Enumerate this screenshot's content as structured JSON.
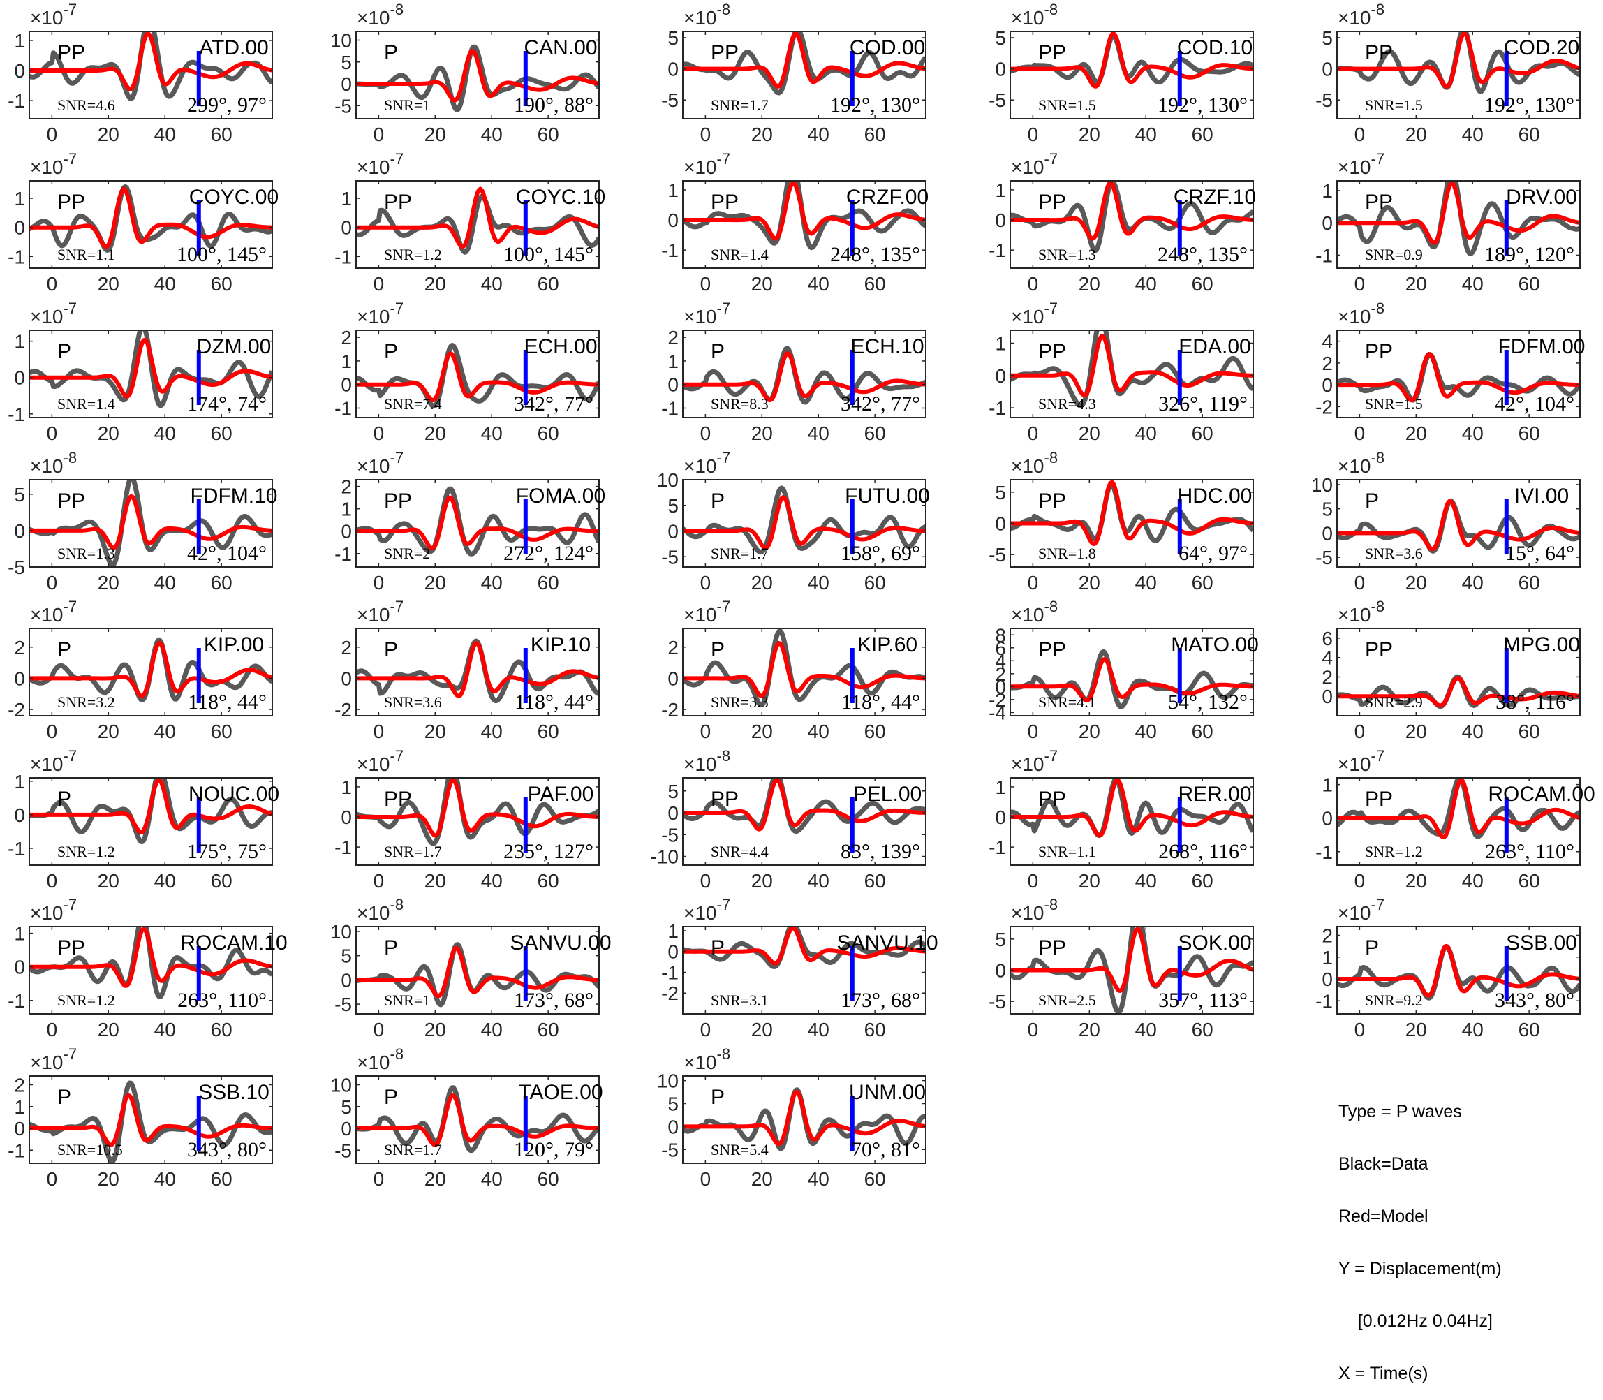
{
  "figure": {
    "colors": {
      "data": "#595959",
      "model": "#ff0000",
      "marker": "#0000ff",
      "axes": "#262626"
    },
    "legend": [
      "Type = P waves",
      "Black=Data",
      "Red=Model",
      "Y = Displacement(m)",
      "    [0.012Hz 0.04Hz]",
      "X = Time(s)"
    ]
  },
  "chart_data": {
    "type": "line",
    "xlabel": "",
    "ylabel": "",
    "xlim": [
      -8,
      78
    ],
    "xticks": [
      0,
      20,
      40,
      60
    ],
    "marker_time": 52,
    "panels": [
      {
        "station": "ATD.00",
        "phase": "PP",
        "snr": "SNR=4.6",
        "angles": "299°, 97°",
        "exp": "-7",
        "yticks": [
          -1,
          0,
          1
        ],
        "ylim": [
          -1.6,
          1.3
        ]
      },
      {
        "station": "CAN.00",
        "phase": "P",
        "snr": "SNR=1",
        "angles": "190°, 88°",
        "exp": "-8",
        "yticks": [
          -5,
          0,
          5,
          10
        ],
        "ylim": [
          -8,
          12
        ]
      },
      {
        "station": "COD.00",
        "phase": "PP",
        "snr": "SNR=1.7",
        "angles": "192°, 130°",
        "exp": "-8",
        "yticks": [
          -5,
          0,
          5
        ],
        "ylim": [
          -8,
          6
        ]
      },
      {
        "station": "COD.10",
        "phase": "PP",
        "snr": "SNR=1.5",
        "angles": "192°, 130°",
        "exp": "-8",
        "yticks": [
          -5,
          0,
          5
        ],
        "ylim": [
          -8,
          6
        ]
      },
      {
        "station": "COD.20",
        "phase": "PP",
        "snr": "SNR=1.5",
        "angles": "192°, 130°",
        "exp": "-8",
        "yticks": [
          -5,
          0,
          5
        ],
        "ylim": [
          -8,
          6
        ]
      },
      {
        "station": "COYC.00",
        "phase": "PP",
        "snr": "SNR=1.1",
        "angles": "100°, 145°",
        "exp": "-7",
        "yticks": [
          -1,
          0,
          1
        ],
        "ylim": [
          -1.4,
          1.6
        ]
      },
      {
        "station": "COYC.10",
        "phase": "PP",
        "snr": "SNR=1.2",
        "angles": "100°, 145°",
        "exp": "-7",
        "yticks": [
          -1,
          0,
          1
        ],
        "ylim": [
          -1.4,
          1.6
        ]
      },
      {
        "station": "CRZF.00",
        "phase": "PP",
        "snr": "SNR=1.4",
        "angles": "248°, 135°",
        "exp": "-7",
        "yticks": [
          -1,
          0,
          1
        ],
        "ylim": [
          -1.6,
          1.3
        ]
      },
      {
        "station": "CRZF.10",
        "phase": "PP",
        "snr": "SNR=1.3",
        "angles": "248°, 135°",
        "exp": "-7",
        "yticks": [
          -1,
          0,
          1
        ],
        "ylim": [
          -1.6,
          1.3
        ]
      },
      {
        "station": "DRV.00",
        "phase": "PP",
        "snr": "SNR=0.9",
        "angles": "189°, 120°",
        "exp": "-7",
        "yticks": [
          -1,
          0,
          1
        ],
        "ylim": [
          -1.4,
          1.3
        ]
      },
      {
        "station": "DZM.00",
        "phase": "P",
        "snr": "SNR=1.4",
        "angles": "174°, 74°",
        "exp": "-7",
        "yticks": [
          -1,
          0,
          1
        ],
        "ylim": [
          -1.1,
          1.3
        ]
      },
      {
        "station": "ECH.00",
        "phase": "P",
        "snr": "SNR=7.4",
        "angles": "342°, 77°",
        "exp": "-7",
        "yticks": [
          -1,
          0,
          1,
          2
        ],
        "ylim": [
          -1.4,
          2.3
        ]
      },
      {
        "station": "ECH.10",
        "phase": "P",
        "snr": "SNR=8.3",
        "angles": "342°, 77°",
        "exp": "-7",
        "yticks": [
          -1,
          0,
          1,
          2
        ],
        "ylim": [
          -1.4,
          2.3
        ]
      },
      {
        "station": "EDA.00",
        "phase": "PP",
        "snr": "SNR=4.3",
        "angles": "326°, 119°",
        "exp": "-7",
        "yticks": [
          -1,
          0,
          1
        ],
        "ylim": [
          -1.3,
          1.4
        ]
      },
      {
        "station": "FDFM.00",
        "phase": "PP",
        "snr": "SNR=1.5",
        "angles": "42°, 104°",
        "exp": "-8",
        "yticks": [
          -2,
          0,
          2,
          4
        ],
        "ylim": [
          -3,
          5
        ]
      },
      {
        "station": "FDFM.10",
        "phase": "PP",
        "snr": "SNR=1.3",
        "angles": "42°, 104°",
        "exp": "-8",
        "yticks": [
          -5,
          0,
          5
        ],
        "ylim": [
          -5,
          7
        ]
      },
      {
        "station": "FOMA.00",
        "phase": "PP",
        "snr": "SNR=2",
        "angles": "272°, 124°",
        "exp": "-7",
        "yticks": [
          -1,
          0,
          1,
          2
        ],
        "ylim": [
          -1.6,
          2.3
        ]
      },
      {
        "station": "FUTU.00",
        "phase": "P",
        "snr": "SNR=1.7",
        "angles": "158°, 69°",
        "exp": "-7",
        "yticks": [
          -5,
          0,
          5,
          10
        ],
        "ylim": [
          -7,
          10
        ]
      },
      {
        "station": "HDC.00",
        "phase": "PP",
        "snr": "SNR=1.8",
        "angles": "64°, 97°",
        "exp": "-8",
        "yticks": [
          -5,
          0,
          5
        ],
        "ylim": [
          -7,
          7
        ]
      },
      {
        "station": "IVI.00",
        "phase": "P",
        "snr": "SNR=3.6",
        "angles": "15°, 64°",
        "exp": "-8",
        "yticks": [
          -5,
          0,
          5,
          10
        ],
        "ylim": [
          -7,
          11
        ]
      },
      {
        "station": "KIP.00",
        "phase": "P",
        "snr": "SNR=3.2",
        "angles": "118°, 44°",
        "exp": "-7",
        "yticks": [
          -2,
          0,
          2
        ],
        "ylim": [
          -2.4,
          3.2
        ]
      },
      {
        "station": "KIP.10",
        "phase": "P",
        "snr": "SNR=3.6",
        "angles": "118°, 44°",
        "exp": "-7",
        "yticks": [
          -2,
          0,
          2
        ],
        "ylim": [
          -2.4,
          3.2
        ]
      },
      {
        "station": "KIP.60",
        "phase": "P",
        "snr": "SNR=3.3",
        "angles": "118°, 44°",
        "exp": "-7",
        "yticks": [
          -2,
          0,
          2
        ],
        "ylim": [
          -2.4,
          3.2
        ]
      },
      {
        "station": "MATO.00",
        "phase": "PP",
        "snr": "SNR=4.1",
        "angles": "54°, 132°",
        "exp": "-8",
        "yticks": [
          -4,
          -2,
          0,
          2,
          4,
          6,
          8
        ],
        "ylim": [
          -4.5,
          9
        ]
      },
      {
        "station": "MPG.00",
        "phase": "PP",
        "snr": "SNR=2.9",
        "angles": "38°, 116°",
        "exp": "-8",
        "yticks": [
          0,
          2,
          4,
          6
        ],
        "ylim": [
          -2,
          7
        ]
      },
      {
        "station": "NOUC.00",
        "phase": "P",
        "snr": "SNR=1.2",
        "angles": "175°, 75°",
        "exp": "-7",
        "yticks": [
          -1,
          0,
          1
        ],
        "ylim": [
          -1.5,
          1.1
        ]
      },
      {
        "station": "PAF.00",
        "phase": "PP",
        "snr": "SNR=1.7",
        "angles": "235°, 127°",
        "exp": "-7",
        "yticks": [
          -1,
          0,
          1
        ],
        "ylim": [
          -1.6,
          1.3
        ]
      },
      {
        "station": "PEL.00",
        "phase": "PP",
        "snr": "SNR=4.4",
        "angles": "83°, 139°",
        "exp": "-8",
        "yticks": [
          -10,
          -5,
          0,
          5
        ],
        "ylim": [
          -12,
          8
        ]
      },
      {
        "station": "RER.00",
        "phase": "PP",
        "snr": "SNR=1.1",
        "angles": "268°, 116°",
        "exp": "-7",
        "yticks": [
          -1,
          0,
          1
        ],
        "ylim": [
          -1.6,
          1.3
        ]
      },
      {
        "station": "ROCAM.00",
        "phase": "PP",
        "snr": "SNR=1.2",
        "angles": "263°, 110°",
        "exp": "-7",
        "yticks": [
          -1,
          0,
          1
        ],
        "ylim": [
          -1.4,
          1.2
        ]
      },
      {
        "station": "ROCAM.10",
        "phase": "PP",
        "snr": "SNR=1.2",
        "angles": "263°, 110°",
        "exp": "-7",
        "yticks": [
          -1,
          0,
          1
        ],
        "ylim": [
          -1.4,
          1.2
        ]
      },
      {
        "station": "SANVU.00",
        "phase": "P",
        "snr": "SNR=1",
        "angles": "173°, 68°",
        "exp": "-8",
        "yticks": [
          -5,
          0,
          5,
          10
        ],
        "ylim": [
          -7,
          11
        ]
      },
      {
        "station": "SANVU.10",
        "phase": "P",
        "snr": "SNR=3.1",
        "angles": "173°, 68°",
        "exp": "-7",
        "yticks": [
          -2,
          -1,
          0,
          1
        ],
        "ylim": [
          -3,
          1.2
        ]
      },
      {
        "station": "SOK.00",
        "phase": "PP",
        "snr": "SNR=2.5",
        "angles": "357°, 113°",
        "exp": "-8",
        "yticks": [
          -5,
          0,
          5
        ],
        "ylim": [
          -7,
          7
        ]
      },
      {
        "station": "SSB.00",
        "phase": "P",
        "snr": "SNR=9.2",
        "angles": "343°, 80°",
        "exp": "-7",
        "yticks": [
          -1,
          0,
          1,
          2
        ],
        "ylim": [
          -1.6,
          2.4
        ]
      },
      {
        "station": "SSB.10",
        "phase": "P",
        "snr": "SNR=10.5",
        "angles": "343°, 80°",
        "exp": "-7",
        "yticks": [
          -1,
          0,
          1,
          2
        ],
        "ylim": [
          -1.6,
          2.4
        ]
      },
      {
        "station": "TAOE.00",
        "phase": "P",
        "snr": "SNR=1.7",
        "angles": "120°, 79°",
        "exp": "-8",
        "yticks": [
          -5,
          0,
          5,
          10
        ],
        "ylim": [
          -8,
          12
        ]
      },
      {
        "station": "UNM.00",
        "phase": "P",
        "snr": "SNR=5.4",
        "angles": "70°, 81°",
        "exp": "-8",
        "yticks": [
          -5,
          0,
          5,
          10
        ],
        "ylim": [
          -8,
          11
        ]
      }
    ]
  }
}
